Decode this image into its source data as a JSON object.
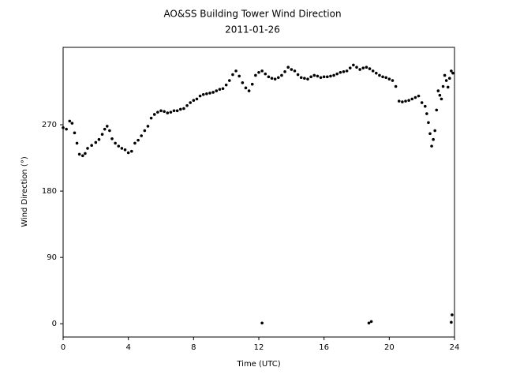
{
  "chart_data": {
    "type": "scatter",
    "title": "AO&SS Building Tower Wind Direction",
    "subtitle": "2011-01-26",
    "xlabel": "Time (UTC)",
    "ylabel": "Wind Direction (°)",
    "color": "#000000",
    "xlim": [
      0,
      24
    ],
    "ylim": [
      -18,
      375
    ],
    "xticks": [
      0,
      4,
      8,
      12,
      16,
      20,
      24
    ],
    "yticks": [
      0,
      90,
      180,
      270
    ],
    "x": [
      0,
      0.2,
      0.4,
      0.55,
      0.7,
      0.85,
      1.0,
      1.2,
      1.35,
      1.5,
      1.75,
      2.0,
      2.2,
      2.4,
      2.55,
      2.7,
      2.85,
      3.0,
      3.2,
      3.4,
      3.6,
      3.8,
      4.0,
      4.2,
      4.4,
      4.6,
      4.8,
      5.0,
      5.2,
      5.4,
      5.6,
      5.8,
      6.0,
      6.2,
      6.4,
      6.6,
      6.8,
      7.0,
      7.2,
      7.4,
      7.6,
      7.8,
      8.0,
      8.2,
      8.4,
      8.6,
      8.8,
      9.0,
      9.2,
      9.4,
      9.6,
      9.8,
      10.0,
      10.2,
      10.4,
      10.6,
      10.8,
      11.0,
      11.2,
      11.4,
      11.6,
      11.8,
      12.0,
      12.2,
      12.4,
      12.6,
      12.8,
      13.0,
      13.2,
      13.4,
      13.6,
      13.8,
      14.0,
      14.2,
      14.4,
      14.6,
      14.8,
      15.0,
      15.2,
      15.4,
      15.6,
      15.8,
      16.0,
      16.2,
      16.4,
      16.6,
      16.8,
      17.0,
      17.2,
      17.4,
      17.6,
      17.8,
      18.0,
      18.2,
      18.4,
      18.6,
      18.8,
      19.0,
      19.2,
      19.4,
      19.6,
      19.8,
      20.0,
      20.2,
      20.4,
      20.6,
      20.8,
      21.0,
      21.2,
      21.4,
      21.6,
      21.8,
      22.0,
      22.2,
      22.3,
      22.4,
      22.5,
      22.6,
      22.7,
      22.8,
      22.9,
      23.0,
      23.1,
      23.2,
      23.3,
      23.4,
      23.5,
      23.6,
      23.7,
      23.8,
      23.9,
      12.2,
      18.75,
      18.9,
      23.8,
      23.85
    ],
    "values": [
      266,
      264,
      275,
      272,
      259,
      245,
      230,
      228,
      231,
      238,
      242,
      246,
      250,
      257,
      264,
      268,
      262,
      251,
      245,
      241,
      238,
      236,
      232,
      234,
      245,
      249,
      255,
      262,
      268,
      279,
      284,
      287,
      289,
      288,
      286,
      287,
      289,
      289,
      291,
      292,
      296,
      300,
      303,
      305,
      309,
      311,
      312,
      313,
      314,
      316,
      318,
      319,
      324,
      330,
      338,
      343,
      336,
      327,
      320,
      316,
      325,
      337,
      341,
      343,
      339,
      335,
      333,
      332,
      334,
      337,
      342,
      348,
      345,
      343,
      338,
      334,
      333,
      332,
      335,
      337,
      336,
      334,
      335,
      335,
      336,
      337,
      339,
      341,
      342,
      343,
      347,
      351,
      348,
      345,
      347,
      348,
      346,
      343,
      340,
      337,
      335,
      334,
      332,
      330,
      322,
      302,
      301,
      302,
      303,
      305,
      307,
      309,
      300,
      295,
      285,
      273,
      258,
      241,
      250,
      262,
      290,
      316,
      310,
      305,
      322,
      337,
      330,
      321,
      333,
      343,
      340,
      1,
      1,
      3,
      2,
      12
    ]
  }
}
